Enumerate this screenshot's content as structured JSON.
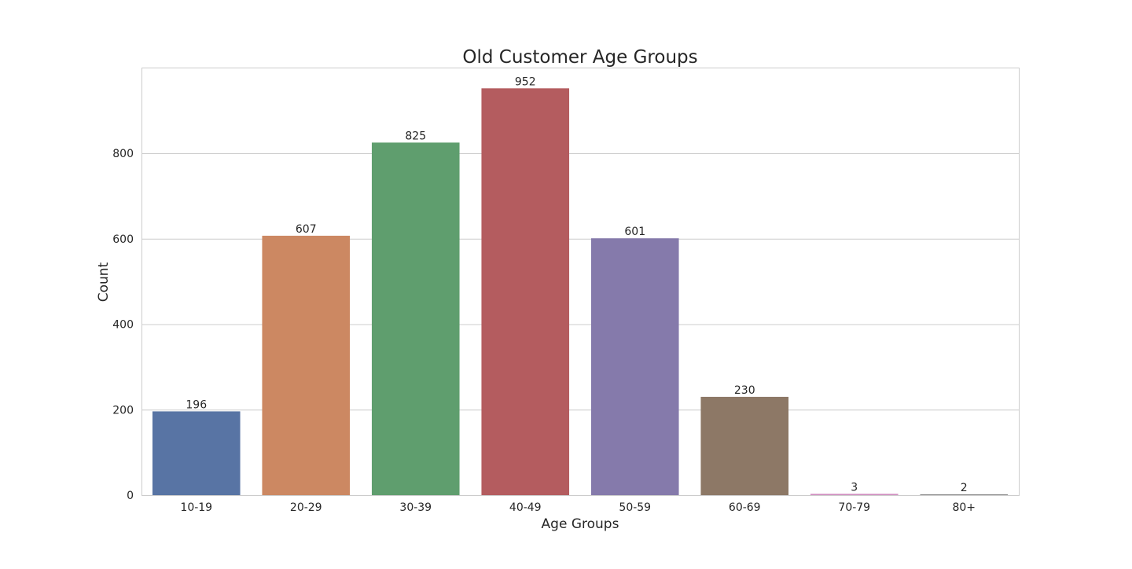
{
  "chart_data": {
    "type": "bar",
    "title": "Old Customer Age Groups",
    "xlabel": "Age Groups",
    "ylabel": "Count",
    "categories": [
      "10-19",
      "20-29",
      "30-39",
      "40-49",
      "50-59",
      "60-69",
      "70-79",
      "80+"
    ],
    "values": [
      196,
      607,
      825,
      952,
      601,
      230,
      3,
      2
    ],
    "ylim": [
      0,
      1000
    ],
    "yticks": [
      0,
      200,
      400,
      600,
      800
    ],
    "grid": "horizontal",
    "colors": [
      "#5874a4",
      "#cc8862",
      "#5f9e6e",
      "#b45c5f",
      "#857aab",
      "#8d7866",
      "#d08ec0",
      "#8c8c8c"
    ]
  }
}
